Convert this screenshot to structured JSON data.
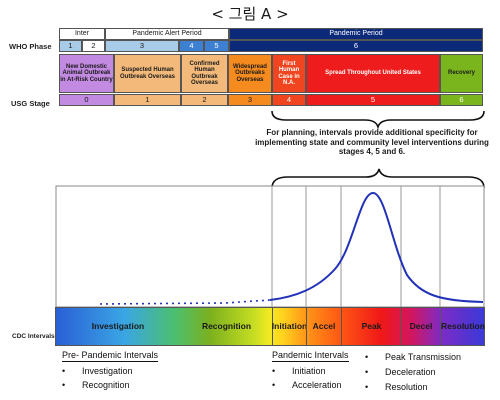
{
  "figure_title": "< 그림 A >",
  "row_labels": {
    "who_phase": "WHO Phase",
    "usg_stage": "USG Stage",
    "cdc_intervals": "CDC Intervals"
  },
  "who_header": {
    "inter": "Inter",
    "alert": "Pandemic Alert Period",
    "pandemic": "Pandemic Period"
  },
  "who_numbers": [
    "1",
    "2",
    "3",
    "4",
    "5",
    "6"
  ],
  "usg_stages": [
    {
      "label": "New Domestic Animal Outbreak in At-Risk Country",
      "number": "0",
      "color": "#c28ae0"
    },
    {
      "label": "Suspected Human Outbreak Overseas",
      "number": "1",
      "color": "#f2b97a"
    },
    {
      "label": "Confirmed Human Outbreak Overseas",
      "number": "2",
      "color": "#f2b97a"
    },
    {
      "label": "Widespread Outbreaks Overseas",
      "number": "3",
      "color": "#f58a1f"
    },
    {
      "label": "First Human Case in N.A.",
      "number": "4",
      "color": "#f0451e"
    },
    {
      "label": "Spread Throughout United States",
      "number": "5",
      "color": "#ee1c1c"
    },
    {
      "label": "Recovery",
      "number": "6",
      "color": "#7ab51d"
    }
  ],
  "planning_note": "For planning, intervals provide additional specificity for implementing state and community level interventions during stages 4, 5 and 6.",
  "cdc_intervals": [
    "Investigation",
    "Recognition",
    "Initiation",
    "Accel",
    "Peak",
    "Decel",
    "Resolution"
  ],
  "legend": {
    "pre_pandemic": {
      "heading": "Pre- Pandemic Intervals",
      "items": [
        "Investigation",
        "Recognition"
      ]
    },
    "pandemic": {
      "heading": "Pandemic Intervals",
      "items": [
        "Initiation",
        "Acceleration"
      ]
    },
    "pandemic_more": {
      "items": [
        "Peak Transmission",
        "Deceleration",
        "Resolution"
      ]
    }
  },
  "bullet": "•",
  "colors": {
    "who_light": "#a8cbe8",
    "who_mid": "#3d7fd0",
    "who_dark": "#0b2a7a",
    "curve": "#2232b8"
  }
}
